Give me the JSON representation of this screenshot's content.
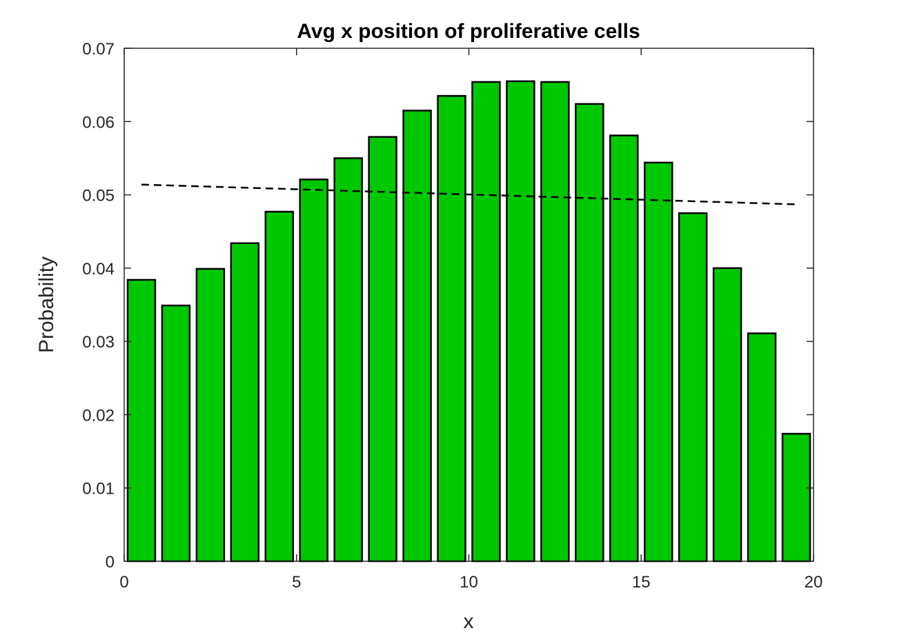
{
  "chart_data": {
    "type": "bar",
    "title": "Avg x position of proliferative cells",
    "xlabel": "x",
    "ylabel": "Probability",
    "xlim": [
      0,
      20
    ],
    "ylim": [
      0,
      0.07
    ],
    "x_ticks": [
      "0",
      "5",
      "10",
      "15",
      "20"
    ],
    "y_ticks": [
      "0",
      "0.01",
      "0.02",
      "0.03",
      "0.04",
      "0.05",
      "0.06",
      "0.07"
    ],
    "bar_color": "#00c800",
    "bar_edge_color": "#000000",
    "series": [
      {
        "x": [
          0.5,
          1.5,
          2.5,
          3.5,
          4.5,
          5.5,
          6.5,
          7.5,
          8.5,
          9.5,
          10.5,
          11.5,
          12.5,
          13.5,
          14.5,
          15.5,
          16.5,
          17.5,
          18.5,
          19.5
        ],
        "values": [
          0.0384,
          0.0349,
          0.0399,
          0.0434,
          0.0477,
          0.0521,
          0.055,
          0.0579,
          0.0615,
          0.0635,
          0.0654,
          0.0655,
          0.0654,
          0.0624,
          0.0581,
          0.0544,
          0.0475,
          0.04,
          0.0311,
          0.0174
        ]
      }
    ],
    "reference_line": {
      "style": "dashed",
      "color": "#000000",
      "x": [
        0.5,
        19.5
      ],
      "y": [
        0.0514,
        0.0487
      ]
    },
    "grid": false,
    "box": true
  }
}
